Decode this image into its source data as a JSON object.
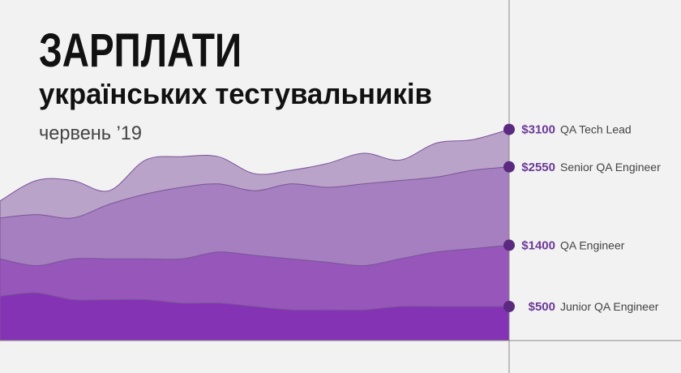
{
  "chart_data": {
    "type": "area",
    "title": "ЗАРПЛАТИ",
    "subtitle": "українських тестувальників",
    "date": "червень ’19",
    "categories": [
      null,
      null,
      null,
      null,
      null,
      null,
      null,
      null,
      null,
      null,
      null,
      null,
      null,
      null,
      null
    ],
    "ylim": [
      0,
      5000
    ],
    "series": [
      {
        "name": "QA Tech Lead",
        "color": "#b9a3c9",
        "values": [
          2050,
          2350,
          2350,
          2200,
          2650,
          2700,
          2700,
          2450,
          2500,
          2600,
          2750,
          2650,
          2900,
          2950,
          3100
        ],
        "value_labels": [
          null,
          null,
          null,
          null,
          null,
          null,
          null,
          null,
          null,
          null,
          null,
          null,
          null,
          null,
          "$3100"
        ]
      },
      {
        "name": "Senior QA Engineer",
        "color": "#a67fc0",
        "values": [
          1800,
          1850,
          1800,
          2000,
          2150,
          2250,
          2300,
          2200,
          2300,
          2250,
          2300,
          2350,
          2400,
          2500,
          2550
        ],
        "value_labels": [
          null,
          null,
          null,
          null,
          null,
          null,
          null,
          null,
          null,
          null,
          null,
          null,
          null,
          null,
          "$2550"
        ]
      },
      {
        "name": "QA Engineer",
        "color": "#9656ba",
        "values": [
          1200,
          1100,
          1200,
          1200,
          1200,
          1200,
          1300,
          1250,
          1200,
          1150,
          1100,
          1200,
          1300,
          1350,
          1400
        ],
        "value_labels": [
          null,
          null,
          null,
          null,
          null,
          null,
          null,
          null,
          null,
          null,
          null,
          null,
          null,
          null,
          "$1400"
        ]
      },
      {
        "name": "Junior QA Engineer",
        "color": "#8433b5",
        "values": [
          650,
          700,
          600,
          600,
          600,
          550,
          550,
          500,
          450,
          450,
          450,
          500,
          500,
          500,
          500
        ],
        "value_labels": [
          null,
          null,
          null,
          null,
          null,
          null,
          null,
          null,
          null,
          null,
          null,
          null,
          null,
          null,
          "$500"
        ]
      }
    ]
  }
}
